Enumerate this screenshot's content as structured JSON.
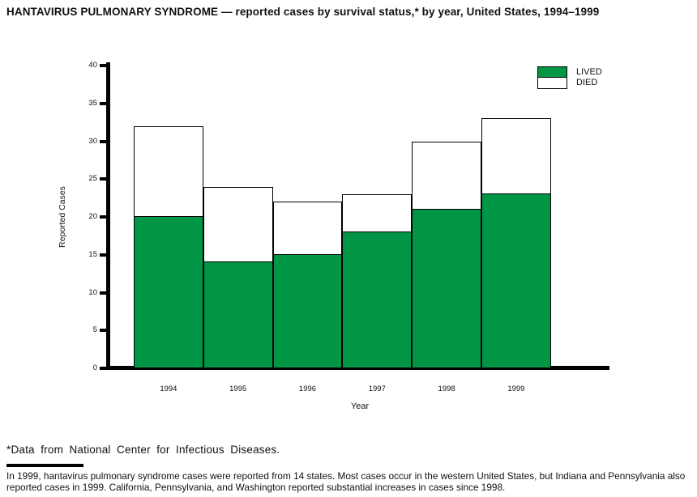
{
  "title": "HANTAVIRUS PULMONARY SYNDROME — reported cases by survival status,* by year, United States, 1994–1999",
  "chart_data": {
    "type": "bar",
    "stacked": true,
    "categories": [
      "1994",
      "1995",
      "1996",
      "1997",
      "1998",
      "1999"
    ],
    "series": [
      {
        "name": "LIVED",
        "color": "#009645",
        "values": [
          20,
          14,
          15,
          18,
          21,
          23
        ]
      },
      {
        "name": "DIED",
        "color": "#ffffff",
        "values": [
          12,
          10,
          7,
          5,
          9,
          10
        ]
      }
    ],
    "totals": [
      32,
      24,
      22,
      23,
      30,
      33
    ],
    "title": "",
    "xlabel": "Year",
    "ylabel": "Reported Cases",
    "ylim": [
      0,
      40
    ],
    "ytick_interval": 5,
    "yticks": [
      0,
      5,
      10,
      15,
      20,
      25,
      30,
      35,
      40
    ],
    "grid": false,
    "legend_position": "top-right"
  },
  "footnote": "*Data from National Center for Infectious Diseases.",
  "description": "In 1999, hantavirus pulmonary syndrome cases were reported from 14 states. Most cases occur in the western United States, but Indiana and Pennsylvania also reported cases in 1999. California, Pennsylvania, and Washington reported substantial increases in cases since 1998.",
  "colors": {
    "lived": "#009645",
    "died": "#ffffff",
    "axis": "#000000"
  }
}
